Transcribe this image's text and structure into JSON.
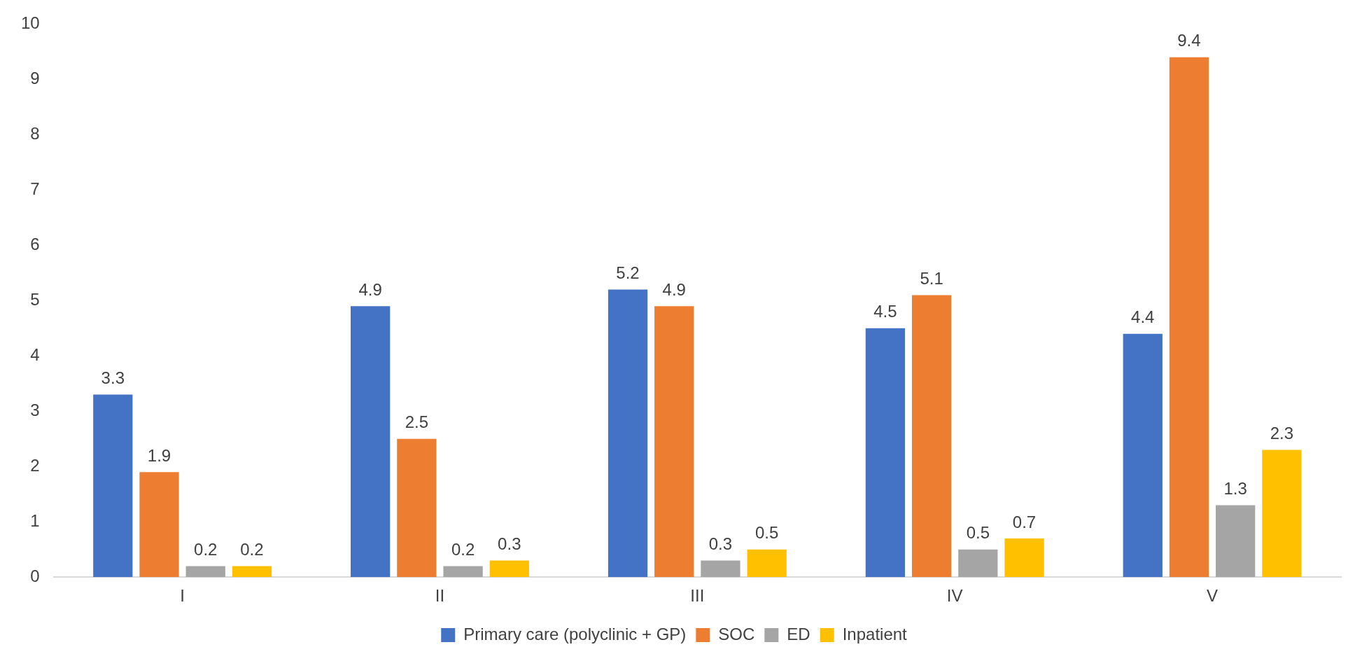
{
  "chart_data": {
    "type": "bar",
    "categories": [
      "I",
      "II",
      "III",
      "IV",
      "V"
    ],
    "series": [
      {
        "name": "Primary care (polyclinic + GP)",
        "color": "#4472c4",
        "values": [
          3.3,
          4.9,
          5.2,
          4.5,
          4.4
        ]
      },
      {
        "name": "SOC",
        "color": "#ed7d31",
        "values": [
          1.9,
          2.5,
          4.9,
          5.1,
          9.4
        ]
      },
      {
        "name": "ED",
        "color": "#a5a5a5",
        "values": [
          0.2,
          0.2,
          0.3,
          0.5,
          1.3
        ]
      },
      {
        "name": "Inpatient",
        "color": "#ffc000",
        "values": [
          0.2,
          0.3,
          0.5,
          0.7,
          2.3
        ]
      }
    ],
    "ylim": [
      0,
      10
    ],
    "yticks": [
      0,
      1,
      2,
      3,
      4,
      5,
      6,
      7,
      8,
      9,
      10
    ],
    "grid": false,
    "legend": "bottom",
    "data_labels": true
  }
}
